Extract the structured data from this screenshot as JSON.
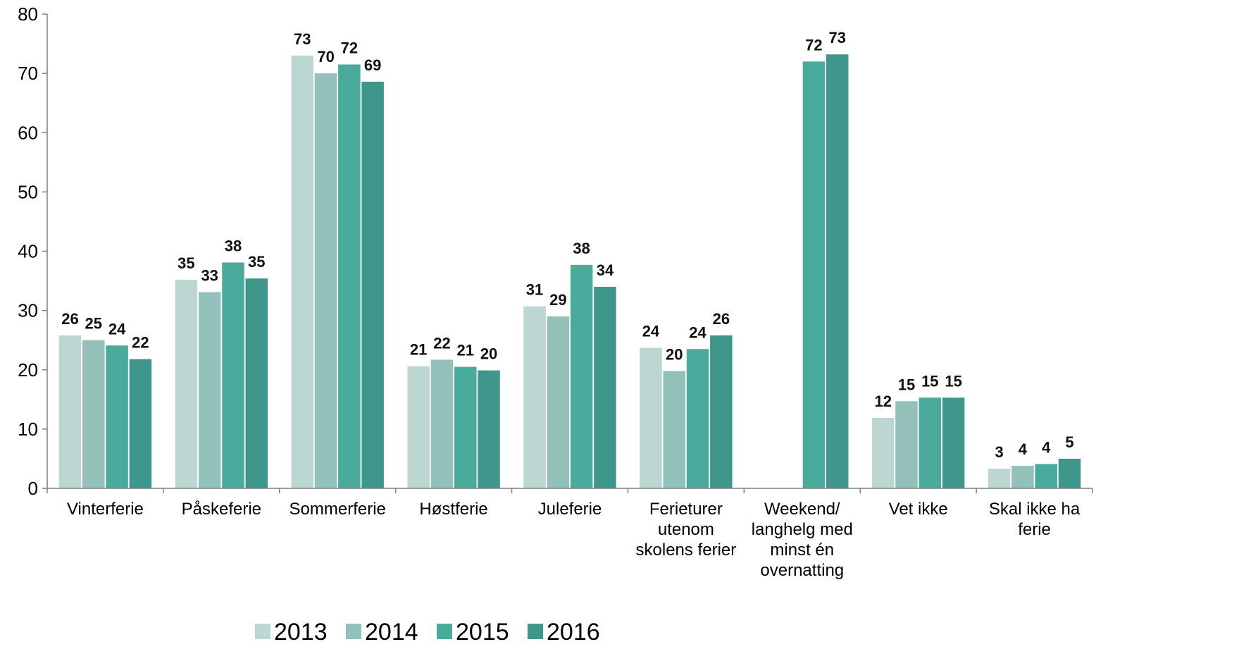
{
  "chart_data": {
    "type": "bar",
    "title": "",
    "xlabel": "",
    "ylabel": "",
    "ylim": [
      0,
      80
    ],
    "yticks": [
      "0",
      "10",
      "20",
      "30",
      "40",
      "50",
      "60",
      "70",
      "80"
    ],
    "grid": false,
    "legend_position": "bottom",
    "categories": [
      [
        "Vinterferie"
      ],
      [
        "Påskeferie"
      ],
      [
        "Sommerferie"
      ],
      [
        "Høstferie"
      ],
      [
        "Juleferie"
      ],
      [
        "Ferieturer",
        "utenom",
        "skolens ferier"
      ],
      [
        "Weekend/",
        "langhelg med",
        "minst én",
        "overnatting"
      ],
      [
        "Vet ikke"
      ],
      [
        "Skal ikke ha",
        "ferie"
      ]
    ],
    "series": [
      {
        "name": "2013",
        "color": "#bcd6d2",
        "values": [
          25.8,
          35.2,
          73.0,
          20.6,
          30.7,
          23.7,
          null,
          11.9,
          3.3
        ],
        "labels": [
          "26",
          "35",
          "73",
          "21",
          "31",
          "24",
          "",
          "12",
          "3"
        ]
      },
      {
        "name": "2014",
        "color": "#93c1b9",
        "values": [
          25.0,
          33.1,
          70.0,
          21.7,
          29.0,
          19.8,
          null,
          14.7,
          3.8
        ],
        "labels": [
          "25",
          "33",
          "70",
          "22",
          "29",
          "20",
          "",
          "15",
          "4"
        ]
      },
      {
        "name": "2015",
        "color": "#4aaa9c",
        "values": [
          24.1,
          38.1,
          71.5,
          20.5,
          37.7,
          23.5,
          72.0,
          15.3,
          4.1
        ],
        "labels": [
          "24",
          "38",
          "72",
          "21",
          "38",
          "24",
          "72",
          "15",
          "4"
        ]
      },
      {
        "name": "2016",
        "color": "#3f968a",
        "values": [
          21.8,
          35.4,
          68.6,
          19.9,
          34.0,
          25.8,
          73.2,
          15.3,
          5.0
        ],
        "labels": [
          "22",
          "35",
          "69",
          "20",
          "34",
          "26",
          "73",
          "15",
          "5"
        ]
      }
    ]
  }
}
